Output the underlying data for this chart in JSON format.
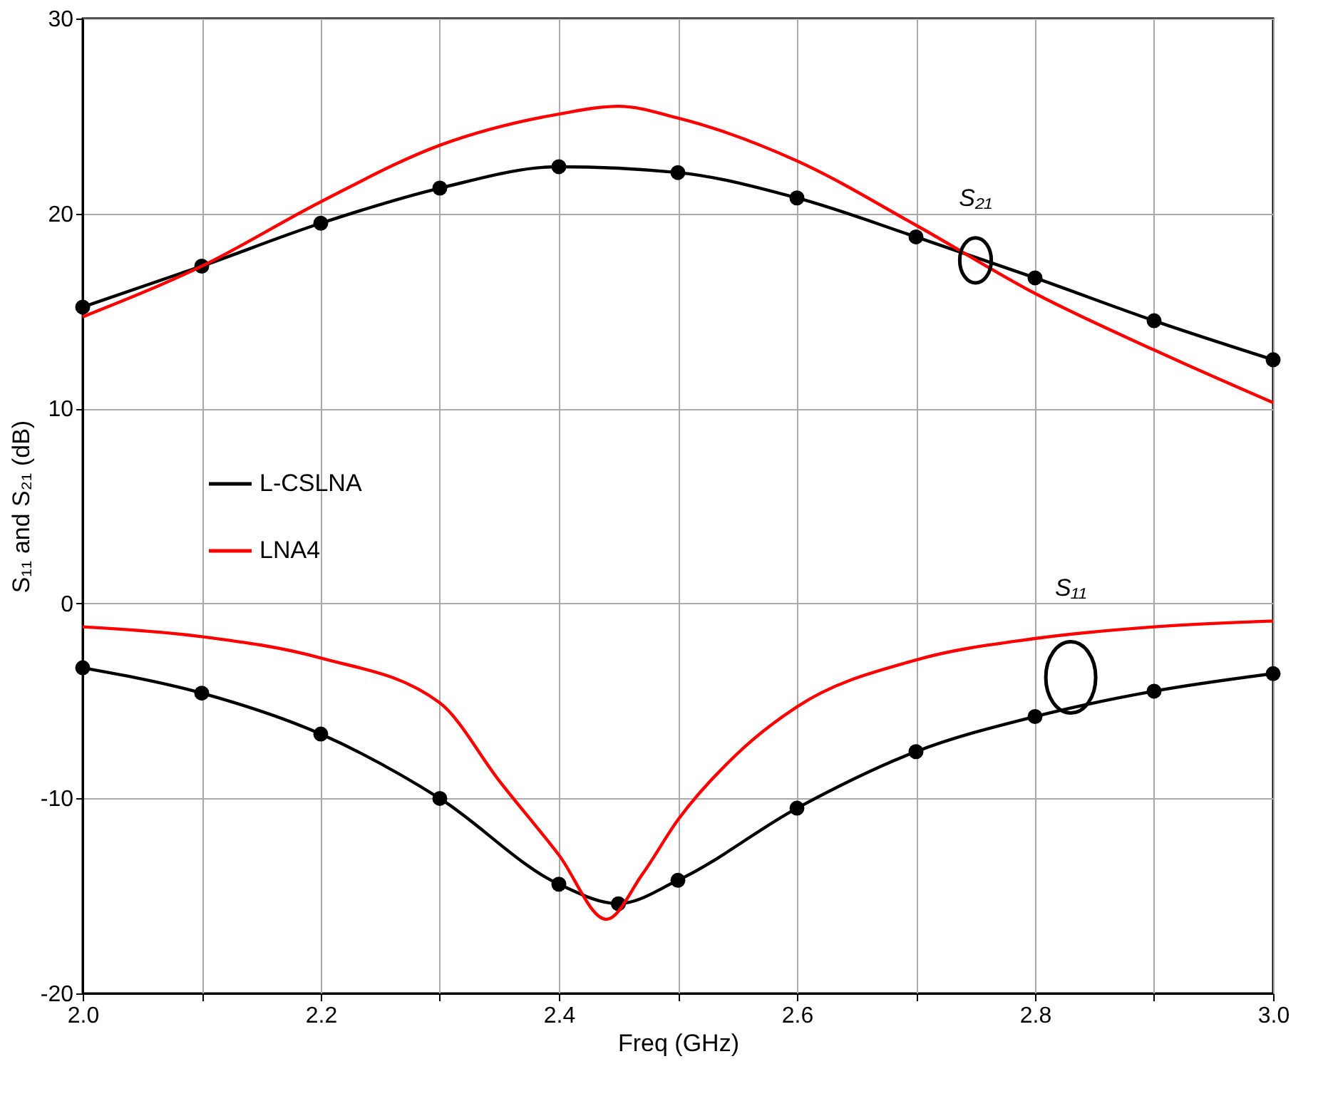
{
  "chart_data": {
    "type": "line",
    "xlabel": "Freq (GHz)",
    "ylabel": "S₁₁ and S₂₁ (dB)",
    "xlim": [
      2.0,
      3.0
    ],
    "ylim": [
      -20,
      30
    ],
    "xticks": [
      {
        "value": 2.0,
        "label": "2.0"
      },
      {
        "value": 2.1,
        "label": null
      },
      {
        "value": 2.2,
        "label": "2.2"
      },
      {
        "value": 2.3,
        "label": null
      },
      {
        "value": 2.4,
        "label": "2.4"
      },
      {
        "value": 2.5,
        "label": null
      },
      {
        "value": 2.6,
        "label": "2.6"
      },
      {
        "value": 2.7,
        "label": null
      },
      {
        "value": 2.8,
        "label": "2.8"
      },
      {
        "value": 2.9,
        "label": null
      },
      {
        "value": 3.0,
        "label": "3.0"
      }
    ],
    "yticks": [
      -20,
      -10,
      0,
      10,
      20,
      30
    ],
    "grid": true,
    "legend": "left",
    "line_style": "solid",
    "series": [
      {
        "name": "L-CSLNA",
        "color": "#000000",
        "marker": "circle",
        "x": [
          2.0,
          2.1,
          2.2,
          2.3,
          2.4,
          2.5,
          2.6,
          2.7,
          2.8,
          2.9,
          3.0
        ],
        "values": [
          15.2,
          17.3,
          19.5,
          21.3,
          22.4,
          22.1,
          20.8,
          18.8,
          16.7,
          14.5,
          12.5
        ]
      },
      {
        "name": "LNA4",
        "color": "#ff0000",
        "marker": "none",
        "x": [
          2.0,
          2.1,
          2.2,
          2.3,
          2.4,
          2.45,
          2.5,
          2.6,
          2.7,
          2.8,
          2.9,
          3.0
        ],
        "values": [
          14.7,
          17.3,
          20.6,
          23.5,
          25.1,
          25.5,
          24.9,
          22.7,
          19.4,
          15.9,
          13.0,
          10.3
        ]
      },
      {
        "color": "#000000",
        "marker": "circle",
        "x": [
          2.0,
          2.1,
          2.2,
          2.3,
          2.4,
          2.45,
          2.5,
          2.6,
          2.7,
          2.8,
          2.9,
          3.0
        ],
        "values": [
          -3.3,
          -4.6,
          -6.7,
          -10.0,
          -14.4,
          -15.4,
          -14.2,
          -10.5,
          -7.6,
          -5.8,
          -4.5,
          -3.6
        ]
      },
      {
        "color": "#ff0000",
        "marker": "none",
        "x": [
          2.0,
          2.1,
          2.2,
          2.3,
          2.35,
          2.4,
          2.44,
          2.47,
          2.5,
          2.55,
          2.6,
          2.7,
          2.8,
          2.9,
          3.0
        ],
        "values": [
          -1.2,
          -1.7,
          -2.8,
          -5.1,
          -9.1,
          -12.9,
          -16.2,
          -13.9,
          -11.1,
          -7.7,
          -5.3,
          -2.9,
          -1.8,
          -1.2,
          -0.9
        ]
      }
    ],
    "annotations": [
      {
        "text": "S₂₁",
        "x": 2.75,
        "y": 17.6
      },
      {
        "text": "S₁₁",
        "x": 2.83,
        "y": -1.6
      }
    ]
  }
}
